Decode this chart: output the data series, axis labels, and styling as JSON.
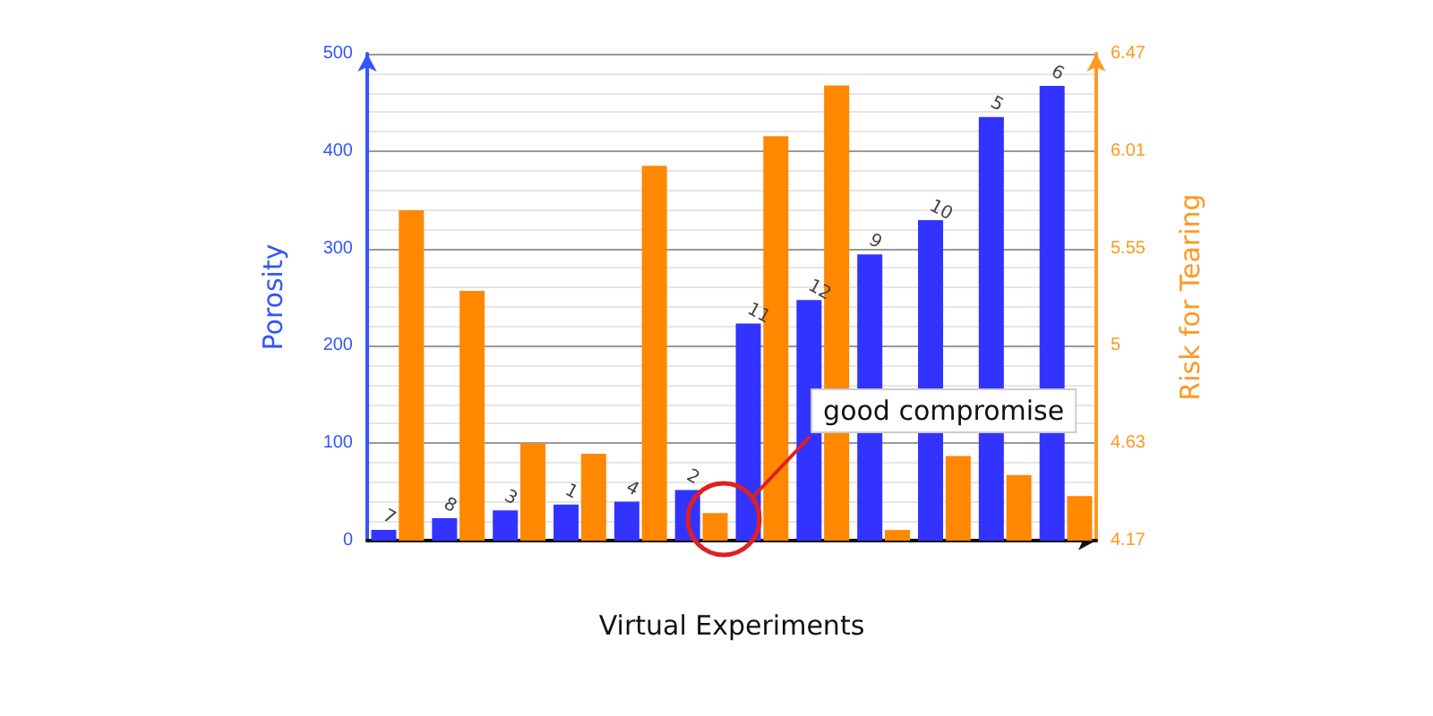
{
  "chart_data": {
    "type": "bar",
    "xlabel": "Virtual Experiments",
    "ylabel": "Porosity",
    "y2label": "Risk for Tearing",
    "categories": [
      null,
      null,
      null,
      null,
      null,
      null,
      null,
      null,
      null,
      null,
      null,
      null
    ],
    "series": [
      {
        "color": "#3333ff",
        "values": [
          11,
          23,
          31,
          37,
          40,
          52,
          223,
          247,
          294,
          329,
          435,
          467
        ]
      },
      {
        "color": "#ff8800",
        "axis": "y2",
        "values": [
          5.73,
          5.35,
          4.63,
          4.58,
          5.94,
          4.3,
          6.08,
          6.32,
          4.22,
          4.57,
          4.48,
          4.38
        ]
      }
    ],
    "ylim": [
      0,
      500
    ],
    "yticks": [
      0,
      100,
      200,
      300,
      400,
      500
    ],
    "y2lim": [
      4.17,
      6.47
    ],
    "y2ticks": [
      4.17,
      4.63,
      {
        "value": 5.09,
        "label": "5"
      },
      5.55,
      6.01,
      6.47
    ],
    "grid": "y",
    "annotations": [
      {
        "text": "7",
        "y": 11
      },
      {
        "text": "8",
        "y": 23
      },
      {
        "text": "3",
        "y": 31
      },
      {
        "text": "1",
        "y": 37
      },
      {
        "text": "4",
        "y": 40
      },
      {
        "text": "2",
        "y": 52
      },
      {
        "text": "11",
        "y": 223
      },
      {
        "text": "12",
        "y": 247
      },
      {
        "text": "9",
        "y": 294
      },
      {
        "text": "10",
        "y": 329
      },
      {
        "text": "5",
        "y": 435
      },
      {
        "text": "6",
        "y": 467
      },
      "good compromise"
    ]
  }
}
